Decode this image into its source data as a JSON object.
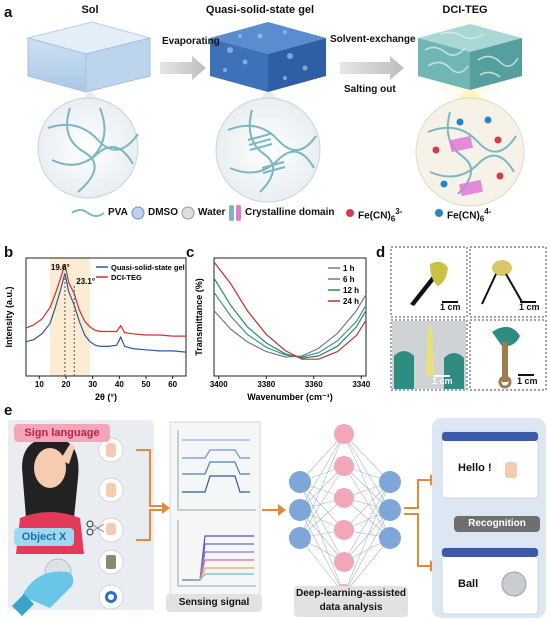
{
  "panel_a": {
    "label": "a",
    "stage_titles": [
      "Sol",
      "Quasi-solid-state gel",
      "DCI-TEG"
    ],
    "arrow1": "Evaporating",
    "arrow2_top": "Solvent-exchange",
    "arrow2_bottom": "Salting out",
    "legend": [
      "PVA",
      "DMSO",
      "Water",
      "Crystalline domain",
      "Fe(CN)",
      "Fe(CN)"
    ],
    "legend_sub": [
      "6",
      "6"
    ],
    "legend_sup": [
      "3-",
      "4-"
    ]
  },
  "panel_b": {
    "label": "b",
    "ylabel": "Intensity (a.u.)",
    "xlabel": "2θ (°)",
    "annot1": "19.6°",
    "annot2": "23.1°",
    "xticks": [
      "10",
      "20",
      "30",
      "40",
      "50",
      "60"
    ]
  },
  "panel_c": {
    "label": "c",
    "ylabel": "Transmittance (%)",
    "xlabel": "Wavenumber (cm⁻¹)",
    "xticks": [
      "3400",
      "3380",
      "3360",
      "3340"
    ]
  },
  "panel_d": {
    "label": "d",
    "scale": [
      "1 cm",
      "1 cm",
      "1 cm",
      "1 cm"
    ]
  },
  "panel_e": {
    "label": "e",
    "sign_language": "Sign language",
    "object_x": "Object X",
    "sensing_signal": "Sensing signal",
    "dl_line1": "Deep-learning-assisted",
    "dl_line2": "data analysis",
    "hello": "Hello !",
    "recognition": "Recognition",
    "ball": "Ball"
  },
  "chart_data": [
    {
      "type": "line",
      "panel": "b",
      "xlabel": "2θ (°)",
      "ylabel": "Intensity (a.u.)",
      "xlim": [
        5,
        65
      ],
      "legend_position": "top-right",
      "series": [
        {
          "name": "Quasi-solid-state gel",
          "color": "#2c5aa0",
          "x": [
            5,
            8,
            11,
            14,
            16,
            18,
            19.6,
            21,
            23.1,
            25,
            27,
            29,
            31,
            33,
            36,
            39,
            40.5,
            42,
            45,
            50,
            55,
            60,
            65
          ],
          "y": [
            0.3,
            0.32,
            0.37,
            0.46,
            0.6,
            0.76,
            0.9,
            0.74,
            0.62,
            0.48,
            0.36,
            0.3,
            0.27,
            0.26,
            0.26,
            0.27,
            0.34,
            0.26,
            0.24,
            0.23,
            0.22,
            0.22,
            0.21
          ]
        },
        {
          "name": "DCI-TEG",
          "color": "#d03030",
          "x": [
            5,
            8,
            11,
            14,
            16,
            18,
            19.6,
            21,
            23.1,
            25,
            27,
            29,
            31,
            33,
            36,
            39,
            40.5,
            42,
            45,
            50,
            55,
            60,
            65
          ],
          "y": [
            0.42,
            0.45,
            0.5,
            0.6,
            0.72,
            0.86,
            0.98,
            0.82,
            0.72,
            0.58,
            0.48,
            0.43,
            0.4,
            0.39,
            0.39,
            0.39,
            0.44,
            0.38,
            0.37,
            0.36,
            0.36,
            0.35,
            0.35
          ]
        }
      ],
      "annotations": [
        "19.6°",
        "23.1°"
      ]
    },
    {
      "type": "line",
      "panel": "c",
      "xlabel": "Wavenumber (cm⁻¹)",
      "ylabel": "Transmittance (%)",
      "xlim": [
        3402,
        3338
      ],
      "legend_position": "top-right",
      "series": [
        {
          "name": "1 h",
          "color": "#7a7a7a",
          "x": [
            3402,
            3395,
            3388,
            3380,
            3372,
            3365,
            3358,
            3350,
            3342,
            3338
          ],
          "y": [
            0.55,
            0.38,
            0.26,
            0.17,
            0.12,
            0.13,
            0.2,
            0.34,
            0.55,
            0.7
          ]
        },
        {
          "name": "6 h",
          "color": "#3e8fa8",
          "x": [
            3402,
            3395,
            3388,
            3380,
            3372,
            3365,
            3358,
            3350,
            3342,
            3338
          ],
          "y": [
            0.72,
            0.5,
            0.33,
            0.21,
            0.14,
            0.12,
            0.16,
            0.27,
            0.45,
            0.6
          ]
        },
        {
          "name": "12 h",
          "color": "#2a8a5a",
          "x": [
            3402,
            3395,
            3388,
            3380,
            3372,
            3365,
            3358,
            3350,
            3342,
            3338
          ],
          "y": [
            0.85,
            0.6,
            0.4,
            0.25,
            0.15,
            0.11,
            0.13,
            0.22,
            0.4,
            0.55
          ]
        },
        {
          "name": "24 h",
          "color": "#c03030",
          "x": [
            3402,
            3395,
            3388,
            3380,
            3372,
            3365,
            3358,
            3350,
            3342,
            3338
          ],
          "y": [
            1.0,
            0.8,
            0.55,
            0.33,
            0.18,
            0.1,
            0.1,
            0.17,
            0.32,
            0.46
          ]
        }
      ]
    }
  ]
}
